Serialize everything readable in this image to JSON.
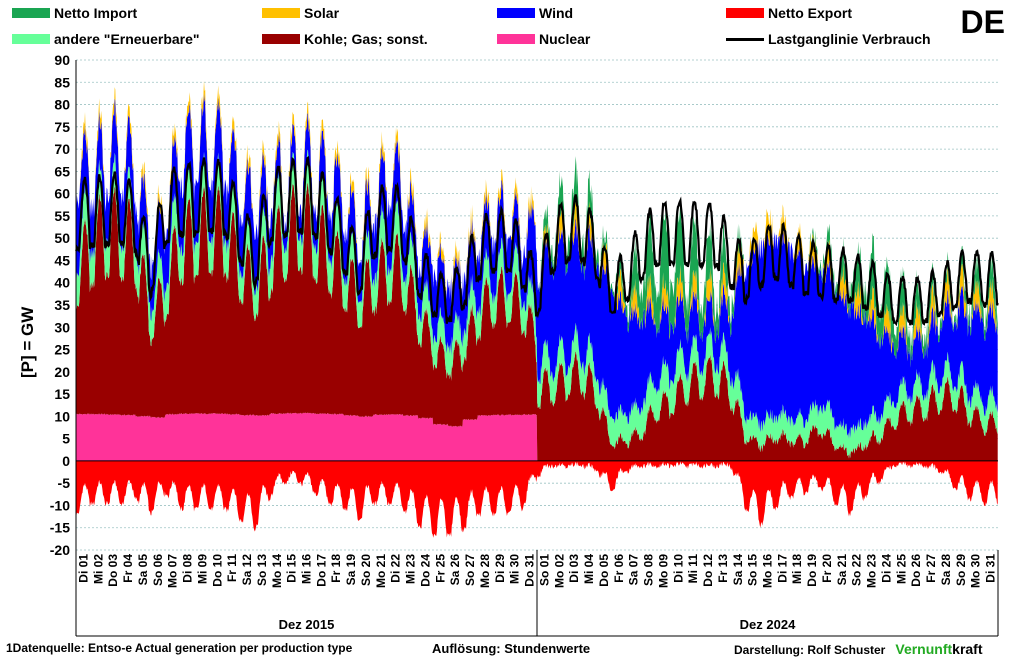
{
  "country_code": "DE",
  "legend": [
    {
      "key": "import",
      "label": "Netto Import",
      "color": "#1aa552"
    },
    {
      "key": "solar",
      "label": "Solar",
      "color": "#ffc000"
    },
    {
      "key": "wind",
      "label": "Wind",
      "color": "#0000ff"
    },
    {
      "key": "export",
      "label": "Netto Export",
      "color": "#ff0000"
    },
    {
      "key": "renew",
      "label": "andere \"Erneuerbare\"",
      "color": "#66ff99"
    },
    {
      "key": "fossil",
      "label": "Kohle; Gas; sonst.",
      "color": "#990000"
    },
    {
      "key": "nuclear",
      "label": "Nuclear",
      "color": "#ff3399"
    },
    {
      "key": "load",
      "label": "Lastganglinie Verbrauch",
      "color": "#000000"
    }
  ],
  "footer": {
    "source": "1Datenquelle: Entso-e  Actual generation per production type",
    "resolution": "Auflösung: Stundenwerte",
    "author_prefix": "Darstellung:  Rolf Schuster",
    "brand_green": "Vernunft",
    "brand_black": "kraft"
  },
  "chart_data": {
    "type": "area",
    "ylabel": "[P]  =  GW",
    "ylim": [
      -20,
      90
    ],
    "yticks": [
      -20,
      -15,
      -10,
      -5,
      0,
      5,
      10,
      15,
      20,
      25,
      30,
      35,
      40,
      45,
      50,
      55,
      60,
      65,
      70,
      75,
      80,
      85,
      90
    ],
    "grid": true,
    "legend_position": "top",
    "groups": [
      {
        "label": "Dez 2015",
        "days": [
          "Di 01",
          "Mi 02",
          "Do 03",
          "Fr 04",
          "Sa 05",
          "So 06",
          "Mo 07",
          "Di 08",
          "Mi 09",
          "Do 10",
          "Fr 11",
          "Sa 12",
          "So 13",
          "Mo 14",
          "Di 15",
          "Mi 16",
          "Do 17",
          "Fr 18",
          "Sa 19",
          "So 20",
          "Mo 21",
          "Di 22",
          "Mi 23",
          "Do 24",
          "Fr 25",
          "Sa 26",
          "So 27",
          "Mo 28",
          "Di 29",
          "Mi 30",
          "Do 31"
        ]
      },
      {
        "label": "Dez 2024",
        "days": [
          "So 01",
          "Mo 02",
          "Di 03",
          "Mi 04",
          "Do 05",
          "Fr 06",
          "Sa 07",
          "So 08",
          "Mo 09",
          "Di 10",
          "Mi 11",
          "Do 12",
          "Fr 13",
          "Sa 14",
          "So 15",
          "Mo 16",
          "Di 17",
          "Mi 18",
          "Do 19",
          "Fr 20",
          "Sa 21",
          "So 22",
          "Mo 23",
          "Di 24",
          "Mi 25",
          "Do 26",
          "Fr 27",
          "Sa 28",
          "So 29",
          "Mo 30",
          "Di 31"
        ]
      }
    ],
    "series_daily": {
      "nuclear": [
        10.5,
        10.5,
        10.4,
        10.3,
        10.0,
        9.8,
        10.5,
        10.6,
        10.6,
        10.6,
        10.5,
        10.3,
        10.2,
        10.6,
        10.7,
        10.7,
        10.6,
        10.5,
        10.2,
        10.0,
        10.4,
        10.4,
        10.2,
        9.6,
        8.2,
        7.8,
        9.3,
        10.2,
        10.3,
        10.3,
        10.4,
        0,
        0,
        0,
        0,
        0,
        0,
        0,
        0,
        0,
        0,
        0,
        0,
        0,
        0,
        0,
        0,
        0,
        0,
        0,
        0,
        0,
        0,
        0,
        0,
        0,
        0,
        0,
        0,
        0,
        0,
        0
      ],
      "fossil": [
        33,
        40,
        43,
        43,
        40,
        23,
        30,
        41,
        42,
        44,
        43,
        36,
        30,
        37,
        42,
        45,
        42,
        38,
        33,
        28,
        32,
        35,
        34,
        24,
        18,
        15,
        18,
        24,
        28,
        28,
        26,
        17,
        18,
        20,
        21,
        16,
        4,
        5,
        7,
        13,
        14,
        18,
        20,
        21,
        17,
        6,
        4,
        6,
        5,
        5,
        8,
        4,
        2,
        4,
        6,
        10,
        12,
        13,
        15,
        16,
        12,
        9
      ],
      "renew": [
        7,
        7,
        7,
        7,
        7,
        6,
        7,
        7,
        7,
        7,
        7,
        6,
        6,
        7,
        7,
        7,
        7,
        7,
        6,
        6,
        7,
        7,
        7,
        6,
        6,
        6,
        6,
        6,
        6,
        6,
        6,
        6,
        6,
        6,
        6,
        6,
        6,
        6,
        7,
        7,
        7,
        6,
        6,
        6,
        6,
        5,
        5,
        5,
        5,
        5,
        6,
        5,
        5,
        5,
        5,
        5,
        5,
        5,
        5,
        5,
        5,
        5
      ],
      "wind": [
        17,
        10,
        10,
        12,
        10,
        10,
        12,
        14,
        13,
        12,
        12,
        12,
        13,
        10,
        6,
        6,
        8,
        10,
        10,
        9,
        12,
        14,
        12,
        10,
        14,
        13,
        12,
        12,
        12,
        12,
        10,
        21,
        24,
        24,
        22,
        25,
        28,
        22,
        20,
        14,
        12,
        10,
        9,
        8,
        12,
        33,
        40,
        40,
        38,
        35,
        30,
        30,
        28,
        24,
        18,
        12,
        10,
        10,
        12,
        14,
        17,
        18
      ],
      "solar": [
        1,
        1,
        1,
        1,
        1,
        1,
        1,
        1,
        1,
        1,
        1,
        1,
        1,
        1,
        1,
        1,
        1,
        1,
        1,
        1,
        1,
        1,
        1,
        1,
        1,
        1,
        1,
        1,
        1,
        1,
        1,
        1,
        2,
        2,
        2,
        2,
        2,
        2,
        2,
        2,
        2,
        2,
        2,
        2,
        2,
        2,
        2,
        2,
        2,
        2,
        2,
        2,
        2,
        2,
        2,
        2,
        2,
        2,
        2,
        2,
        2,
        2
      ],
      "import": [
        0,
        0,
        0,
        0,
        0,
        0,
        0,
        0,
        0,
        0,
        0,
        0,
        0,
        0,
        0,
        0,
        0,
        0,
        0,
        0,
        0,
        0,
        0,
        0,
        0,
        0,
        0,
        0,
        0,
        0,
        0,
        0,
        6,
        7,
        8,
        4,
        1,
        4,
        11,
        14,
        15,
        12,
        10,
        9,
        6,
        0,
        0,
        0,
        0,
        0,
        2,
        3,
        6,
        9,
        11,
        8,
        6,
        5,
        3,
        2,
        4,
        5
      ],
      "export": [
        -10,
        -8,
        -8,
        -8,
        -7,
        -10,
        -6,
        -9,
        -9,
        -9,
        -9,
        -11,
        -13,
        -7,
        -4,
        -4,
        -6,
        -8,
        -9,
        -11,
        -8,
        -8,
        -9,
        -12,
        -14,
        -14,
        -13,
        -10,
        -10,
        -10,
        -9,
        -3,
        -1,
        -1,
        -1,
        -2,
        -6,
        -2,
        -1,
        -1,
        -1,
        -1,
        -1,
        -1,
        -1,
        -9,
        -12,
        -9,
        -7,
        -6,
        -5,
        -8,
        -10,
        -7,
        -4,
        -1,
        -1,
        -1,
        -2,
        -5,
        -7,
        -8
      ],
      "load": [
        58,
        59,
        59,
        60,
        57,
        45,
        60,
        62,
        62,
        63,
        62,
        55,
        48,
        60,
        62,
        63,
        62,
        58,
        52,
        46,
        56,
        58,
        56,
        46,
        40,
        38,
        42,
        50,
        52,
        52,
        48,
        40,
        52,
        55,
        55,
        50,
        40,
        44,
        50,
        54,
        54,
        54,
        54,
        54,
        48,
        44,
        48,
        50,
        48,
        46,
        45,
        44,
        44,
        42,
        40,
        38,
        38,
        38,
        40,
        42,
        44,
        43
      ]
    }
  }
}
